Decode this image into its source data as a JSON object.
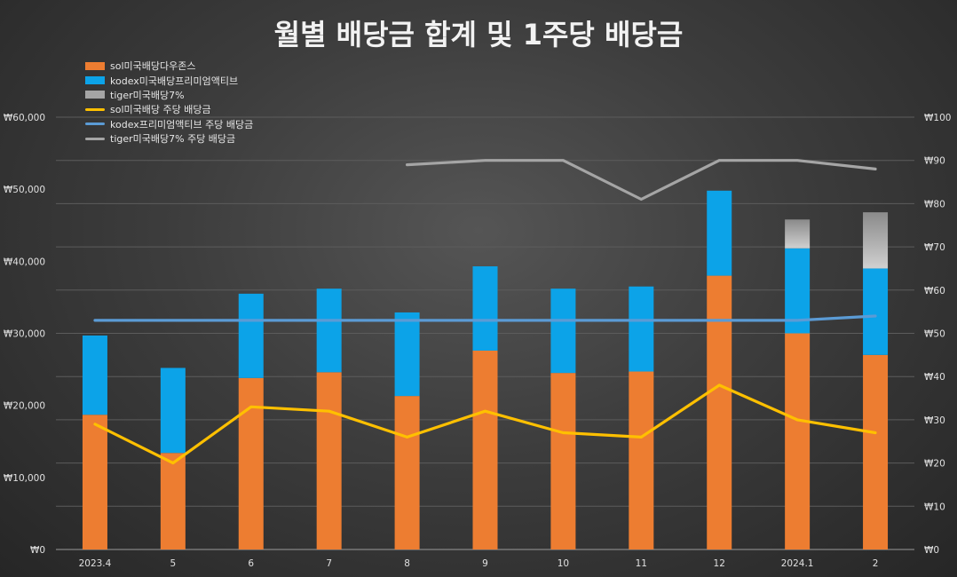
{
  "chart_data": {
    "type": "bar",
    "title": "월별 배당금 합계 및 1주당 배당금",
    "categories": [
      "2023.4",
      "5",
      "6",
      "7",
      "8",
      "9",
      "10",
      "11",
      "12",
      "2024.1",
      "2"
    ],
    "stacked_bars": [
      {
        "name": "sol미국배당다우존스",
        "color": "#ed7d31",
        "values": [
          18700,
          13400,
          23800,
          24600,
          21300,
          27600,
          24500,
          24700,
          38000,
          30000,
          27000
        ]
      },
      {
        "name": "kodex미국배당프리미엄액티브",
        "color": "#0ca3e8",
        "values": [
          11000,
          11800,
          11700,
          11600,
          11600,
          11700,
          11700,
          11800,
          11800,
          11800,
          12000
        ]
      },
      {
        "name": "tiger미국배당7%",
        "color": "#a5a5a5",
        "values": [
          0,
          0,
          0,
          0,
          0,
          0,
          0,
          0,
          0,
          4000,
          7800
        ]
      }
    ],
    "lines": [
      {
        "name": "sol미국배당 주당 배당금",
        "color": "#ffc000",
        "values": [
          29,
          20,
          33,
          32,
          26,
          32,
          27,
          26,
          38,
          30,
          27
        ]
      },
      {
        "name": "kodex프리미엄액티브 주당 배당금",
        "color": "#5b9bd5",
        "values": [
          53,
          53,
          53,
          53,
          53,
          53,
          53,
          53,
          53,
          53,
          54
        ]
      },
      {
        "name": "tiger미국배당7% 주당 배당금",
        "color": "#a5a5a5",
        "values": [
          null,
          null,
          null,
          null,
          89,
          90,
          90,
          81,
          90,
          90,
          88
        ]
      }
    ],
    "y_left": {
      "min": 0,
      "max": 60000,
      "step": 10000,
      "tick_labels": [
        "₩0",
        "₩10,000",
        "₩20,000",
        "₩30,000",
        "₩40,000",
        "₩50,000",
        "₩60,000"
      ]
    },
    "y_right": {
      "min": 0,
      "max": 100,
      "step": 10,
      "tick_labels": [
        "₩0",
        "₩10",
        "₩20",
        "₩30",
        "₩40",
        "₩50",
        "₩60",
        "₩70",
        "₩80",
        "₩90",
        "₩100"
      ]
    },
    "grid": true,
    "legend_position": "top-left"
  },
  "legend": [
    {
      "label": "sol미국배당다우존스",
      "kind": "box",
      "color": "#ed7d31"
    },
    {
      "label": "kodex미국배당프리미엄액티브",
      "kind": "box",
      "color": "#0ca3e8"
    },
    {
      "label": "tiger미국배당7%",
      "kind": "box",
      "color": "#a5a5a5"
    },
    {
      "label": "sol미국배당 주당 배당금",
      "kind": "line",
      "color": "#ffc000"
    },
    {
      "label": "kodex프리미엄액티브 주당 배당금",
      "kind": "line",
      "color": "#5b9bd5"
    },
    {
      "label": "tiger미국배당7% 주당 배당금",
      "kind": "line",
      "color": "#a5a5a5"
    }
  ]
}
